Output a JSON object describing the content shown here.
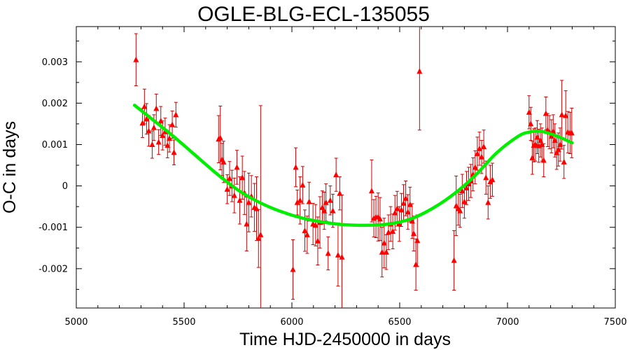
{
  "chart_data": {
    "type": "scatter",
    "title": "OGLE-BLG-ECL-135055",
    "xlabel": "Time HJD-2450000 in days",
    "ylabel": "O-C in days",
    "xlim": [
      5000,
      7500
    ],
    "ylim": [
      -0.00295,
      0.00385
    ],
    "xticks": [
      5000,
      5500,
      6000,
      6500,
      7000,
      7500
    ],
    "xtick_labels": [
      "5000",
      "5500",
      "6000",
      "6500",
      "7000",
      "7500"
    ],
    "yticks": [
      -0.002,
      -0.001,
      0,
      0.001,
      0.002,
      0.003
    ],
    "ytick_labels": [
      "-0.002",
      "-0.001",
      "0",
      "0.001",
      "0.002",
      "0.003"
    ],
    "grid": false,
    "colors": {
      "points": "#ff0000",
      "errorbars": "#cc0000",
      "fit": "#00ee00",
      "axes": "#000000"
    },
    "series": [
      {
        "type": "scatter_errorbars",
        "points": [
          {
            "x": 5277,
            "y": 0.00305,
            "err": 0.00063
          },
          {
            "x": 5307,
            "y": 0.00152,
            "err": 0.00035
          },
          {
            "x": 5316,
            "y": 0.00192,
            "err": 0.00042
          },
          {
            "x": 5326,
            "y": 0.00162,
            "err": 0.00037
          },
          {
            "x": 5336,
            "y": 0.00133,
            "err": 0.00037
          },
          {
            "x": 5352,
            "y": 0.001,
            "err": 0.00033
          },
          {
            "x": 5360,
            "y": 0.00141,
            "err": 0.00031
          },
          {
            "x": 5371,
            "y": 0.00187,
            "err": 0.00035
          },
          {
            "x": 5382,
            "y": 0.00106,
            "err": 0.0003
          },
          {
            "x": 5392,
            "y": 0.00157,
            "err": 0.00035
          },
          {
            "x": 5400,
            "y": 0.00122,
            "err": 0.00035
          },
          {
            "x": 5412,
            "y": 0.00131,
            "err": 0.00033
          },
          {
            "x": 5423,
            "y": 0.00098,
            "err": 0.0003
          },
          {
            "x": 5432,
            "y": 0.00115,
            "err": 0.00033
          },
          {
            "x": 5445,
            "y": 0.00148,
            "err": 0.00033
          },
          {
            "x": 5453,
            "y": 0.00081,
            "err": 0.0003
          },
          {
            "x": 5462,
            "y": 0.00172,
            "err": 0.0003
          },
          {
            "x": 5660,
            "y": 0.00113,
            "err": 0.00057
          },
          {
            "x": 5668,
            "y": 0.00116,
            "err": 0.00077
          },
          {
            "x": 5676,
            "y": 0.00064,
            "err": 0.00039
          },
          {
            "x": 5683,
            "y": 0.00058,
            "err": 0.0005
          },
          {
            "x": 5700,
            "y": -8e-05,
            "err": 0.00035
          },
          {
            "x": 5711,
            "y": 0.00018,
            "err": 0.00041
          },
          {
            "x": 5722,
            "y": 0.0,
            "err": 0.00038
          },
          {
            "x": 5733,
            "y": -0.00023,
            "err": 0.00042
          },
          {
            "x": 5745,
            "y": 0.00045,
            "err": 0.00041
          },
          {
            "x": 5758,
            "y": -0.00035,
            "err": 0.00057
          },
          {
            "x": 5770,
            "y": 0.0002,
            "err": 0.00052
          },
          {
            "x": 5780,
            "y": -0.00017,
            "err": 0.00052
          },
          {
            "x": 5790,
            "y": -0.00092,
            "err": 0.00065
          },
          {
            "x": 5800,
            "y": -0.0004,
            "err": 0.00071
          },
          {
            "x": 5812,
            "y": -0.00025,
            "err": 0.0005
          },
          {
            "x": 5826,
            "y": -0.00052,
            "err": 0.00058
          },
          {
            "x": 5836,
            "y": -0.00055,
            "err": 0.00077
          },
          {
            "x": 5845,
            "y": -0.00127,
            "err": 0.0007
          },
          {
            "x": 5855,
            "y": -0.00118,
            "err": 0.00312
          },
          {
            "x": 6005,
            "y": -0.00202,
            "err": 0.00072
          },
          {
            "x": 6018,
            "y": 0.00045,
            "err": 0.00047
          },
          {
            "x": 6025,
            "y": -0.0004,
            "err": 0.0003
          },
          {
            "x": 6038,
            "y": -0.00035,
            "err": 0.00057
          },
          {
            "x": 6050,
            "y": 2e-05,
            "err": 0.00045
          },
          {
            "x": 6060,
            "y": -0.00108,
            "err": 0.0005
          },
          {
            "x": 6071,
            "y": -0.00118,
            "err": 0.00045
          },
          {
            "x": 6080,
            "y": -0.00038,
            "err": 0.00047
          },
          {
            "x": 6098,
            "y": -0.00092,
            "err": 0.0005
          },
          {
            "x": 6110,
            "y": -0.00095,
            "err": 0.0005
          },
          {
            "x": 6120,
            "y": -0.00133,
            "err": 0.00058
          },
          {
            "x": 6130,
            "y": -0.00088,
            "err": 0.00062
          },
          {
            "x": 6141,
            "y": -0.00052,
            "err": 0.0004
          },
          {
            "x": 6150,
            "y": -0.0006,
            "err": 0.00045
          },
          {
            "x": 6158,
            "y": -0.0004,
            "err": 0.00045
          },
          {
            "x": 6168,
            "y": -0.00163,
            "err": 0.0004
          },
          {
            "x": 6178,
            "y": -0.00035,
            "err": 0.00035
          },
          {
            "x": 6190,
            "y": -0.0006,
            "err": 0.0004
          },
          {
            "x": 6205,
            "y": 0.00027,
            "err": 0.0004
          },
          {
            "x": 6214,
            "y": -0.00167,
            "err": 0.00075
          },
          {
            "x": 6222,
            "y": -0.00018,
            "err": 0.0004
          },
          {
            "x": 6232,
            "y": -0.00172,
            "err": 0.0015
          },
          {
            "x": 6370,
            "y": -0.00012,
            "err": 0.00075
          },
          {
            "x": 6380,
            "y": -0.00078,
            "err": 0.00045
          },
          {
            "x": 6390,
            "y": -0.00075,
            "err": 0.0005
          },
          {
            "x": 6400,
            "y": -0.00075,
            "err": 0.00058
          },
          {
            "x": 6409,
            "y": -0.0008,
            "err": 0.00052
          },
          {
            "x": 6418,
            "y": -0.0016,
            "err": 0.0006
          },
          {
            "x": 6428,
            "y": -0.00138,
            "err": 0.0006
          },
          {
            "x": 6438,
            "y": -0.0016,
            "err": 0.00042
          },
          {
            "x": 6448,
            "y": -0.00112,
            "err": 0.00042
          },
          {
            "x": 6458,
            "y": -0.00092,
            "err": 0.00042
          },
          {
            "x": 6468,
            "y": -0.0011,
            "err": 0.00042
          },
          {
            "x": 6478,
            "y": -0.00065,
            "err": 0.00042
          },
          {
            "x": 6488,
            "y": -0.00055,
            "err": 0.00042
          },
          {
            "x": 6498,
            "y": -0.00092,
            "err": 0.00042
          },
          {
            "x": 6508,
            "y": -0.00058,
            "err": 0.0004
          },
          {
            "x": 6518,
            "y": -0.00042,
            "err": 0.00045
          },
          {
            "x": 6528,
            "y": -0.0003,
            "err": 0.00042
          },
          {
            "x": 6538,
            "y": -0.00063,
            "err": 0.00042
          },
          {
            "x": 6548,
            "y": -0.00045,
            "err": 0.00042
          },
          {
            "x": 6558,
            "y": -0.00085,
            "err": 0.00042
          },
          {
            "x": 6565,
            "y": -0.00115,
            "err": 0.00042
          },
          {
            "x": 6575,
            "y": -0.0019,
            "err": 0.00062
          },
          {
            "x": 6582,
            "y": -0.00132,
            "err": 0.00062
          },
          {
            "x": 6592,
            "y": 0.00277,
            "err": 0.00142
          },
          {
            "x": 6752,
            "y": -0.0018,
            "err": 0.00072
          },
          {
            "x": 6762,
            "y": -0.00048,
            "err": 0.00072
          },
          {
            "x": 6772,
            "y": -0.00055,
            "err": 0.0004
          },
          {
            "x": 6780,
            "y": -0.0006,
            "err": 0.0004
          },
          {
            "x": 6790,
            "y": -0.00012,
            "err": 0.0004
          },
          {
            "x": 6800,
            "y": -0.00038,
            "err": 0.0004
          },
          {
            "x": 6810,
            "y": -5e-05,
            "err": 0.0004
          },
          {
            "x": 6820,
            "y": 5e-05,
            "err": 0.0004
          },
          {
            "x": 6830,
            "y": 0.00012,
            "err": 0.0004
          },
          {
            "x": 6840,
            "y": 0.00028,
            "err": 0.0004
          },
          {
            "x": 6850,
            "y": 0.00045,
            "err": 0.0004
          },
          {
            "x": 6860,
            "y": 0.00078,
            "err": 0.0004
          },
          {
            "x": 6870,
            "y": 0.0009,
            "err": 0.0004
          },
          {
            "x": 6880,
            "y": 0.0007,
            "err": 0.0004
          },
          {
            "x": 6890,
            "y": 0.00095,
            "err": 0.0004
          },
          {
            "x": 6900,
            "y": 0.0002,
            "err": 0.0004
          },
          {
            "x": 6910,
            "y": -0.0004,
            "err": 0.0004
          },
          {
            "x": 6920,
            "y": 0.0001,
            "err": 0.0004
          },
          {
            "x": 6930,
            "y": 0.00015,
            "err": 0.0004
          },
          {
            "x": 7100,
            "y": 0.00178,
            "err": 0.0004
          },
          {
            "x": 7108,
            "y": 0.0015,
            "err": 0.0004
          },
          {
            "x": 7115,
            "y": 0.00068,
            "err": 0.0004
          },
          {
            "x": 7122,
            "y": 0.00098,
            "err": 0.0004
          },
          {
            "x": 7130,
            "y": 0.001,
            "err": 0.0004
          },
          {
            "x": 7138,
            "y": 0.00118,
            "err": 0.0004
          },
          {
            "x": 7145,
            "y": 0.00097,
            "err": 0.0004
          },
          {
            "x": 7153,
            "y": 0.0011,
            "err": 0.0004
          },
          {
            "x": 7160,
            "y": 0.001,
            "err": 0.0004
          },
          {
            "x": 7168,
            "y": 0.00062,
            "err": 0.0004
          },
          {
            "x": 7178,
            "y": 0.00175,
            "err": 0.0004
          },
          {
            "x": 7186,
            "y": 0.00135,
            "err": 0.0004
          },
          {
            "x": 7195,
            "y": 0.0013,
            "err": 0.0004
          },
          {
            "x": 7204,
            "y": 0.0012,
            "err": 0.0004
          },
          {
            "x": 7212,
            "y": 0.00132,
            "err": 0.0004
          },
          {
            "x": 7220,
            "y": 0.0011,
            "err": 0.0004
          },
          {
            "x": 7228,
            "y": 0.0008,
            "err": 0.0004
          },
          {
            "x": 7236,
            "y": 0.00088,
            "err": 0.0004
          },
          {
            "x": 7244,
            "y": 0.001,
            "err": 0.0004
          },
          {
            "x": 7252,
            "y": 0.00172,
            "err": 0.00083
          },
          {
            "x": 7262,
            "y": 0.00058,
            "err": 0.0004
          },
          {
            "x": 7270,
            "y": 0.0017,
            "err": 0.0006
          },
          {
            "x": 7280,
            "y": 0.0013,
            "err": 0.0005
          },
          {
            "x": 7290,
            "y": 0.00128,
            "err": 0.0005
          },
          {
            "x": 7298,
            "y": 0.00128,
            "err": 0.0006
          }
        ]
      },
      {
        "type": "line",
        "x": [
          5270,
          5350,
          5450,
          5550,
          5650,
          5750,
          5850,
          5950,
          6050,
          6150,
          6250,
          6350,
          6450,
          6550,
          6650,
          6750,
          6850,
          6950,
          7050,
          7100,
          7150,
          7200,
          7250,
          7300
        ],
        "y": [
          0.00195,
          0.00162,
          0.0012,
          0.00075,
          0.0003,
          -0.0001,
          -0.0004,
          -0.00062,
          -0.00078,
          -0.00088,
          -0.00094,
          -0.00095,
          -0.00092,
          -0.0008,
          -0.00055,
          -0.0002,
          0.00025,
          0.0008,
          0.0012,
          0.0013,
          0.00132,
          0.00126,
          0.00116,
          0.00104
        ]
      }
    ]
  }
}
